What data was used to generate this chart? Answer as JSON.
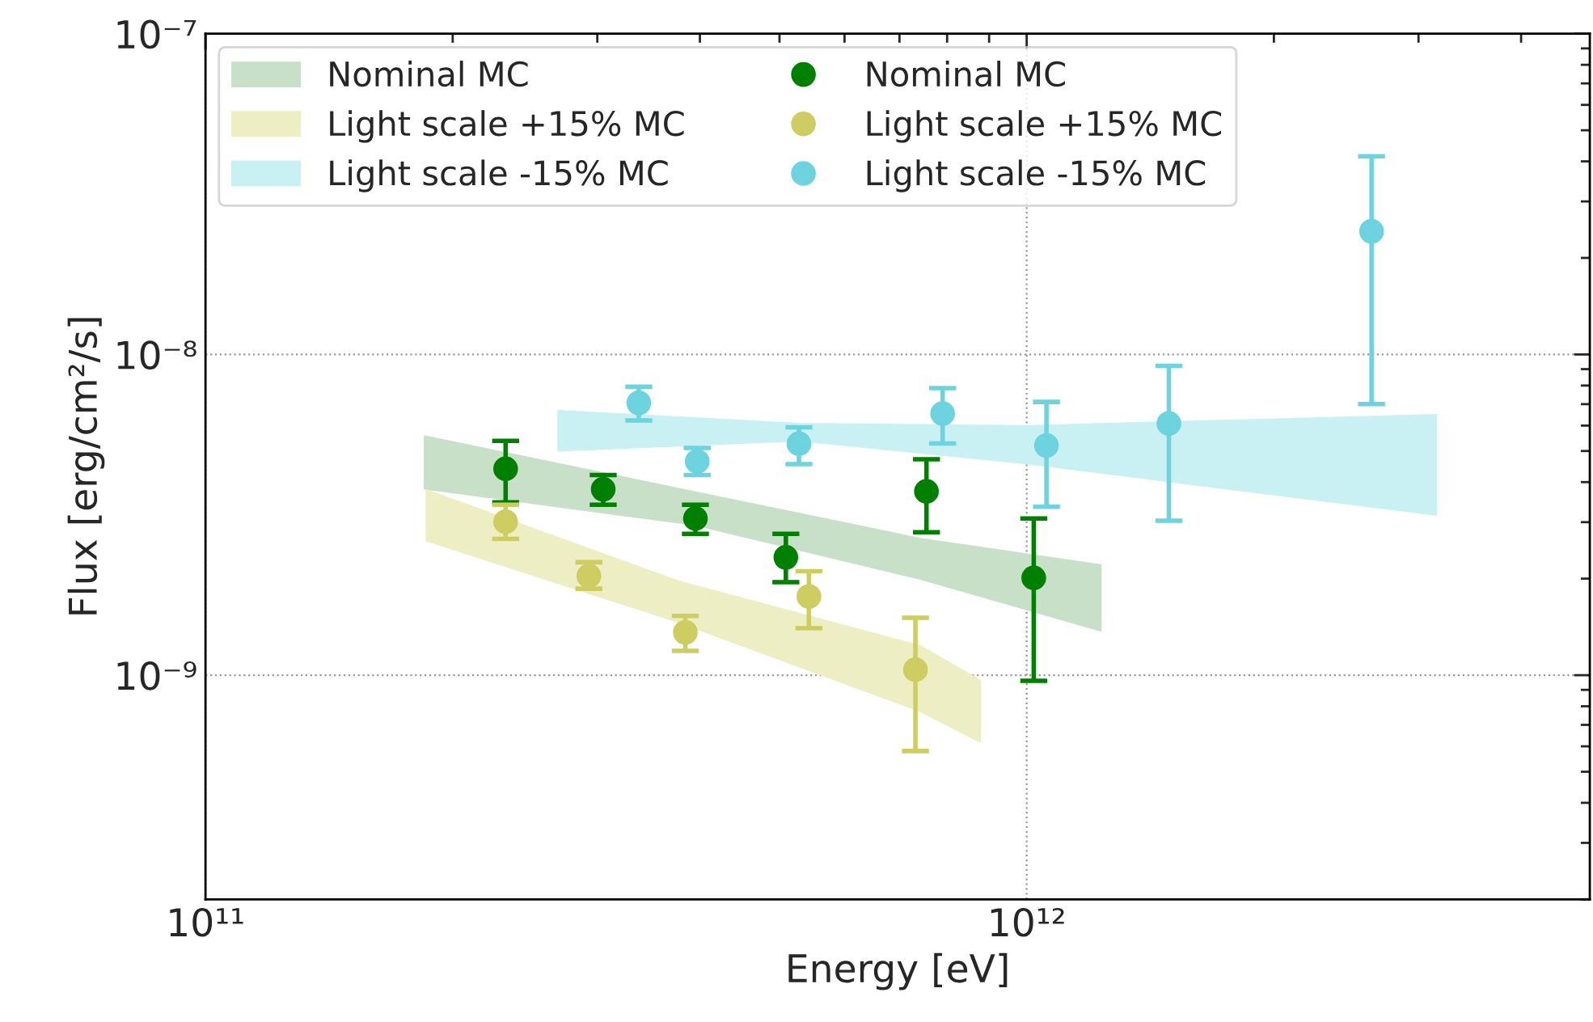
{
  "chart_data": {
    "type": "scatter",
    "xlabel": "Energy [eV]",
    "ylabel": "Flux [erg/cm²/s]",
    "log": "xy",
    "grid": true,
    "legend": "top left",
    "marker": "circle",
    "xlim": [
      100000000000.0,
      4850000000000.0
    ],
    "ylim": [
      2e-10,
      1e-07
    ],
    "xticks": [
      {
        "value": 100000000000.0,
        "label": "10¹¹"
      },
      {
        "value": 1000000000000.0,
        "label": "10¹²"
      }
    ],
    "yticks": [
      {
        "value": 1e-09,
        "label": "10⁻⁹"
      },
      {
        "value": 1e-08,
        "label": "10⁻⁸"
      },
      {
        "value": 1e-07,
        "label": "10⁻⁷"
      }
    ],
    "series": [
      {
        "type": "area",
        "name": "Nominal MC",
        "color": "#c8e0c8",
        "x": [
          185000000000.0,
          394000000000.0,
          742000000000.0,
          1230000000000.0
        ],
        "values": [
          null,
          null,
          null,
          null
        ],
        "lower": [
          3.82e-09,
          2.95e-09,
          2e-09,
          1.38e-09
        ],
        "upper": [
          5.55e-09,
          3.72e-09,
          2.66e-09,
          2.2e-09
        ]
      },
      {
        "type": "area",
        "name": "Light scale +15% MC",
        "color": "#eeeec4",
        "x": [
          186000000000.0,
          376000000000.0,
          742000000000.0,
          877000000000.0
        ],
        "values": [
          null,
          null,
          null,
          null
        ],
        "lower": [
          2.63e-09,
          1.47e-09,
          7.74e-10,
          6.21e-10
        ],
        "upper": [
          3.77e-09,
          1.96e-09,
          1.23e-09,
          9.62e-10
        ]
      },
      {
        "type": "area",
        "name": "Light scale -15% MC",
        "color": "#c9f0f2",
        "x": [
          269000000000.0,
          528000000000.0,
          1000000000000.0,
          3150000000000.0
        ],
        "values": [
          null,
          null,
          null,
          null
        ],
        "lower": [
          5.02e-09,
          5.4e-09,
          4.58e-09,
          3.17e-09
        ],
        "upper": [
          6.66e-09,
          6.07e-09,
          5.97e-09,
          6.47e-09
        ]
      },
      {
        "name": "Nominal MC",
        "color": "#008000",
        "x": [
          232000000000.0,
          305000000000.0,
          395000000000.0,
          509000000000.0,
          755000000000.0,
          1020000000000.0
        ],
        "values": [
          4.4e-09,
          3.8e-09,
          3.08e-09,
          2.33e-09,
          3.74e-09,
          2.01e-09
        ],
        "errors": [
          [
            3.46e-09,
            5.38e-09
          ],
          [
            3.4e-09,
            4.21e-09
          ],
          [
            2.76e-09,
            3.4e-09
          ],
          [
            1.95e-09,
            2.76e-09
          ],
          [
            2.79e-09,
            4.71e-09
          ],
          [
            9.6e-10,
            3.08e-09
          ]
        ]
      },
      {
        "name": "Light scale +15% MC",
        "color": "#cdcd62",
        "x": [
          232000000000.0,
          293000000000.0,
          384000000000.0,
          543000000000.0,
          732000000000.0
        ],
        "values": [
          3.01e-09,
          2.04e-09,
          1.36e-09,
          1.76e-09,
          1.04e-09
        ],
        "errors": [
          [
            2.66e-09,
            3.4e-09
          ],
          [
            1.86e-09,
            2.25e-09
          ],
          [
            1.19e-09,
            1.53e-09
          ],
          [
            1.4e-09,
            2.11e-09
          ],
          [
            5.8e-10,
            1.51e-09
          ]
        ]
      },
      {
        "name": "Light scale -15% MC",
        "color": "#6dd3de",
        "x": [
          337000000000.0,
          397000000000.0,
          528000000000.0,
          790000000000.0,
          1057000000000.0,
          1490000000000.0,
          2630000000000.0
        ],
        "values": [
          7.06e-09,
          4.64e-09,
          5.27e-09,
          6.54e-09,
          5.2e-09,
          6.09e-09,
          2.42e-08
        ],
        "errors": [
          [
            6.23e-09,
            7.93e-09
          ],
          [
            4.21e-09,
            5.11e-09
          ],
          [
            4.55e-09,
            5.93e-09
          ],
          [
            5.28e-09,
            7.85e-09
          ],
          [
            3.35e-09,
            7.11e-09
          ],
          [
            3.03e-09,
            9.21e-09
          ],
          [
            7e-09,
            4.15e-08
          ]
        ]
      }
    ]
  }
}
